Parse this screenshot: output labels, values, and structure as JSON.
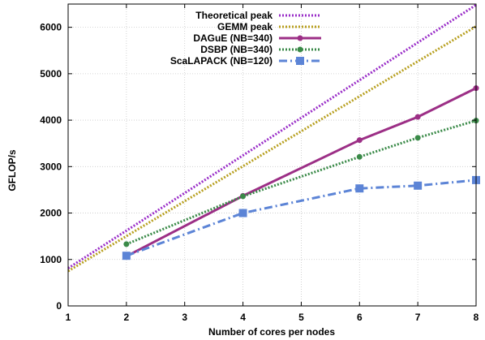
{
  "chart_data": {
    "type": "line",
    "title": "",
    "xlabel": "Number of cores per nodes",
    "ylabel": "GFLOP/s",
    "xlim": [
      1,
      8
    ],
    "ylim": [
      0,
      6500
    ],
    "x_ticks": [
      "1",
      "2",
      "3",
      "4",
      "5",
      "6",
      "7",
      "8"
    ],
    "y_ticks": [
      "0",
      "1000",
      "2000",
      "3000",
      "4000",
      "5000",
      "6000"
    ],
    "grid": true,
    "legend_position": "top-left",
    "series": [
      {
        "name": "Theoretical peak",
        "color": "#9a2ec8",
        "style": "dotted",
        "marker": "none",
        "x": [
          1,
          8
        ],
        "values": [
          810,
          6480
        ]
      },
      {
        "name": "GEMM peak",
        "color": "#b8a020",
        "style": "dotted",
        "marker": "none",
        "x": [
          1,
          8
        ],
        "values": [
          750,
          6020
        ]
      },
      {
        "name": "DAGuE (NB=340)",
        "color": "#9c2f86",
        "style": "solid",
        "marker": "circle",
        "x": [
          2,
          4,
          6,
          7,
          8
        ],
        "values": [
          1070,
          2370,
          3570,
          4070,
          4690
        ]
      },
      {
        "name": "DSBP (NB=340)",
        "color": "#3a8a48",
        "style": "dotted",
        "marker": "circle",
        "x": [
          2,
          4,
          6,
          7,
          8
        ],
        "values": [
          1330,
          2360,
          3210,
          3620,
          3990
        ]
      },
      {
        "name": "ScaLAPACK (NB=120)",
        "color": "#5c84d6",
        "style": "dashdot",
        "marker": "square",
        "x": [
          2,
          4,
          6,
          7,
          8
        ],
        "values": [
          1080,
          2000,
          2530,
          2590,
          2710
        ]
      }
    ]
  }
}
